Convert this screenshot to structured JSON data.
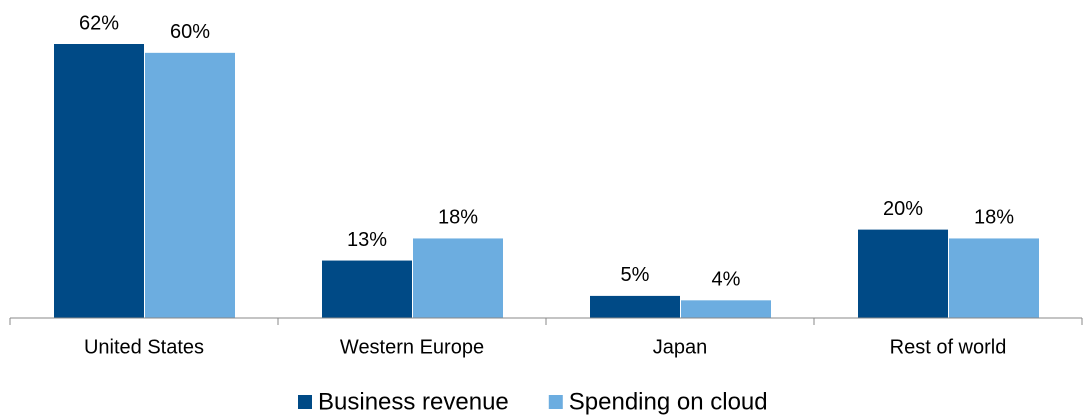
{
  "chart_data": {
    "type": "bar",
    "categories": [
      "United States",
      "Western Europe",
      "Japan",
      "Rest of world"
    ],
    "series": [
      {
        "name": "Business revenue",
        "color": "#004a86",
        "values": [
          62,
          13,
          5,
          20
        ],
        "value_labels": [
          "62%",
          "13%",
          "5%",
          "20%"
        ]
      },
      {
        "name": "Spending on cloud",
        "color": "#6cade0",
        "values": [
          60,
          18,
          4,
          18
        ],
        "value_labels": [
          "60%",
          "18%",
          "4%",
          "18%"
        ]
      }
    ],
    "legend": "bottom"
  }
}
